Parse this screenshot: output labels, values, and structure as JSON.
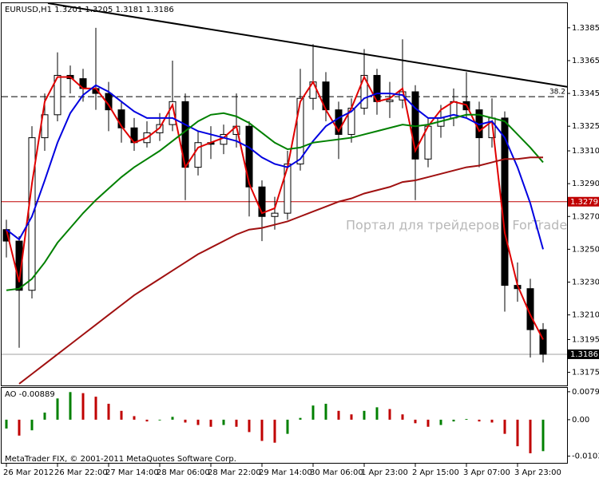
{
  "chart_data": [
    {
      "type": "candlestick",
      "title": "EURUSD,H1 1.3201 1.3205 1.3181 1.3186",
      "watermark": "Портал для трейдеров - ForTrader.ru",
      "categories": [
        "26 Mar 2012",
        null,
        null,
        null,
        "26 Mar 22:00",
        null,
        null,
        null,
        "27 Mar 14:00",
        null,
        null,
        null,
        "28 Mar 06:00",
        null,
        null,
        null,
        "28 Mar 22:00",
        null,
        null,
        null,
        "29 Mar 14:00",
        null,
        null,
        null,
        "30 Mar 06:00",
        null,
        null,
        null,
        "1 Apr 23:00",
        null,
        null,
        null,
        "2 Apr 15:00",
        null,
        null,
        null,
        "3 Apr 07:00",
        null,
        null,
        null,
        "3 Apr 23:00",
        null,
        null
      ],
      "open": [
        1.3262,
        1.3255,
        1.3225,
        1.3318,
        1.3332,
        1.3356,
        1.3354,
        1.3348,
        1.3345,
        1.3335,
        1.3324,
        1.3315,
        1.3321,
        1.3326,
        1.334,
        1.33,
        1.3315,
        1.3314,
        1.332,
        1.3325,
        1.3288,
        1.327,
        1.3272,
        1.3302,
        1.3342,
        1.3352,
        1.3335,
        1.332,
        1.3336,
        1.3356,
        1.334,
        1.3341,
        1.3346,
        1.3305,
        1.3325,
        1.333,
        1.334,
        1.3335,
        1.3318,
        1.333,
        1.3228,
        1.3226,
        1.3201
      ],
      "high": [
        1.3268,
        1.3258,
        1.3325,
        1.3345,
        1.337,
        1.3362,
        1.336,
        1.3385,
        1.3352,
        1.334,
        1.333,
        1.3328,
        1.3333,
        1.3365,
        1.3345,
        1.3322,
        1.3325,
        1.3326,
        1.3345,
        1.3328,
        1.3292,
        1.3282,
        1.331,
        1.336,
        1.3375,
        1.3358,
        1.334,
        1.3342,
        1.3372,
        1.336,
        1.3352,
        1.3378,
        1.335,
        1.333,
        1.3338,
        1.3348,
        1.3358,
        1.334,
        1.3342,
        1.3334,
        1.3242,
        1.3232,
        1.3205
      ],
      "low": [
        1.3245,
        1.319,
        1.322,
        1.331,
        1.3328,
        1.3345,
        1.334,
        1.3335,
        1.3322,
        1.3315,
        1.331,
        1.3312,
        1.3316,
        1.3322,
        1.328,
        1.3295,
        1.3305,
        1.3308,
        1.3312,
        1.327,
        1.3255,
        1.3262,
        1.3268,
        1.3298,
        1.3335,
        1.3328,
        1.3305,
        1.3315,
        1.3332,
        1.3332,
        1.333,
        1.3336,
        1.328,
        1.33,
        1.3318,
        1.3325,
        1.333,
        1.33,
        1.3312,
        1.3212,
        1.3218,
        1.3184,
        1.3181
      ],
      "close": [
        1.3255,
        1.3225,
        1.3318,
        1.3332,
        1.3356,
        1.3354,
        1.3348,
        1.3345,
        1.3335,
        1.3324,
        1.3315,
        1.3321,
        1.3326,
        1.334,
        1.33,
        1.3315,
        1.3314,
        1.332,
        1.3325,
        1.3288,
        1.327,
        1.3272,
        1.3302,
        1.3342,
        1.3352,
        1.3335,
        1.332,
        1.3336,
        1.3356,
        1.334,
        1.3341,
        1.3346,
        1.3305,
        1.3325,
        1.333,
        1.334,
        1.3335,
        1.3318,
        1.333,
        1.3228,
        1.3226,
        1.3201,
        1.3186
      ],
      "up_color": "#ffffff",
      "down_color": "#000000",
      "outline": "#000000",
      "ylim": [
        1.3167,
        1.34
      ],
      "yticks": [
        1.3385,
        1.3365,
        1.3345,
        1.3325,
        {
          "value": 1.331,
          "label": "1.3310"
        },
        {
          "value": 1.329,
          "label": "1.3290"
        },
        {
          "value": 1.327,
          "label": "1.3270"
        },
        {
          "value": 1.325,
          "label": "1.3250"
        },
        {
          "value": 1.323,
          "label": "1.3230"
        },
        {
          "value": 1.321,
          "label": "1.3210"
        },
        1.3195,
        1.3175
      ],
      "indicators": [
        {
          "color": "#e00000",
          "values": [
            1.3262,
            1.323,
            1.329,
            1.334,
            1.3355,
            1.3355,
            1.3348,
            1.3348,
            1.3338,
            1.3325,
            1.3315,
            1.3318,
            1.3324,
            1.3338,
            1.33,
            1.3312,
            1.3315,
            1.3318,
            1.3325,
            1.329,
            1.3272,
            1.3275,
            1.33,
            1.334,
            1.3352,
            1.3335,
            1.3322,
            1.3336,
            1.3355,
            1.334,
            1.3342,
            1.3348,
            1.331,
            1.3325,
            1.3335,
            1.334,
            1.3338,
            1.3322,
            1.3328,
            1.326,
            1.3228,
            1.321,
            1.3195
          ]
        },
        {
          "color": "#0000e0",
          "values": [
            1.3262,
            1.3256,
            1.327,
            1.3292,
            1.3315,
            1.3333,
            1.3344,
            1.335,
            1.3346,
            1.334,
            1.3334,
            1.333,
            1.333,
            1.333,
            1.3326,
            1.3322,
            1.332,
            1.3318,
            1.3316,
            1.3312,
            1.3306,
            1.3302,
            1.33,
            1.3305,
            1.3316,
            1.3325,
            1.333,
            1.3334,
            1.3342,
            1.3345,
            1.3345,
            1.3344,
            1.3336,
            1.333,
            1.333,
            1.3332,
            1.333,
            1.3326,
            1.3328,
            1.3318,
            1.33,
            1.3278,
            1.325
          ]
        },
        {
          "color": "#008000",
          "values": [
            1.3225,
            1.3226,
            1.3232,
            1.3242,
            1.3254,
            1.3263,
            1.3272,
            1.328,
            1.3287,
            1.3294,
            1.33,
            1.3305,
            1.331,
            1.3316,
            1.3322,
            1.3328,
            1.3332,
            1.3333,
            1.3331,
            1.3327,
            1.3321,
            1.3315,
            1.3311,
            1.3312,
            1.3315,
            1.3316,
            1.3317,
            1.3318,
            1.332,
            1.3322,
            1.3324,
            1.3326,
            1.3325,
            1.3326,
            1.3328,
            1.333,
            1.3332,
            1.3332,
            1.333,
            1.3328,
            1.332,
            1.3312,
            1.3303
          ]
        },
        {
          "color": "#a01010",
          "values": [
            null,
            1.3168,
            1.3174,
            1.318,
            1.3186,
            1.3192,
            1.3198,
            1.3204,
            1.321,
            1.3216,
            1.3222,
            1.3227,
            1.3232,
            1.3237,
            1.3242,
            1.3247,
            1.3251,
            1.3255,
            1.3259,
            1.3262,
            1.3263,
            1.3265,
            1.3267,
            1.327,
            1.3273,
            1.3276,
            1.3279,
            1.3281,
            1.3284,
            1.3286,
            1.3288,
            1.3291,
            1.3292,
            1.3294,
            1.3296,
            1.3298,
            1.33,
            1.3301,
            1.3303,
            1.3305,
            1.3305,
            1.3306,
            1.3306
          ]
        }
      ],
      "hlines": [
        {
          "value": 1.3279,
          "color": "#c00000"
        },
        {
          "value": 1.3186,
          "color": "#a0a0a0"
        },
        {
          "value": 1.3343,
          "color": "#000000",
          "label": "38.2",
          "dashed": true
        }
      ],
      "trendline": {
        "color": "#000000",
        "from": {
          "x": 3.25,
          "y": 1.34
        },
        "to": {
          "x": 43.9,
          "y": 1.3349
        }
      }
    },
    {
      "type": "histogram",
      "title": "AO -0.00889",
      "values": [
        -0.0025,
        -0.0045,
        -0.003,
        0.002,
        0.006,
        0.0078,
        0.0075,
        0.0065,
        0.0045,
        0.0025,
        0.001,
        -0.0005,
        -0.0002,
        0.0008,
        -0.0008,
        -0.0015,
        -0.002,
        -0.0015,
        -0.002,
        -0.0035,
        -0.006,
        -0.0065,
        -0.004,
        0.0005,
        0.004,
        0.0045,
        0.0025,
        0.0015,
        0.0025,
        0.0035,
        0.003,
        0.0015,
        -0.001,
        -0.002,
        -0.0015,
        -0.0005,
        0.0002,
        -0.0005,
        -0.0008,
        -0.004,
        -0.0075,
        -0.0095,
        -0.00889
      ],
      "up_color": "#008000",
      "down_color": "#c00000",
      "ylim": [
        -0.0122,
        0.009
      ],
      "yticks": [
        0.0079,
        {
          "value": 0,
          "label": "0.00"
        },
        -0.01031
      ]
    }
  ],
  "footer": "MetaTrader FIX, © 2001-2011 MetaQuotes Software Corp."
}
